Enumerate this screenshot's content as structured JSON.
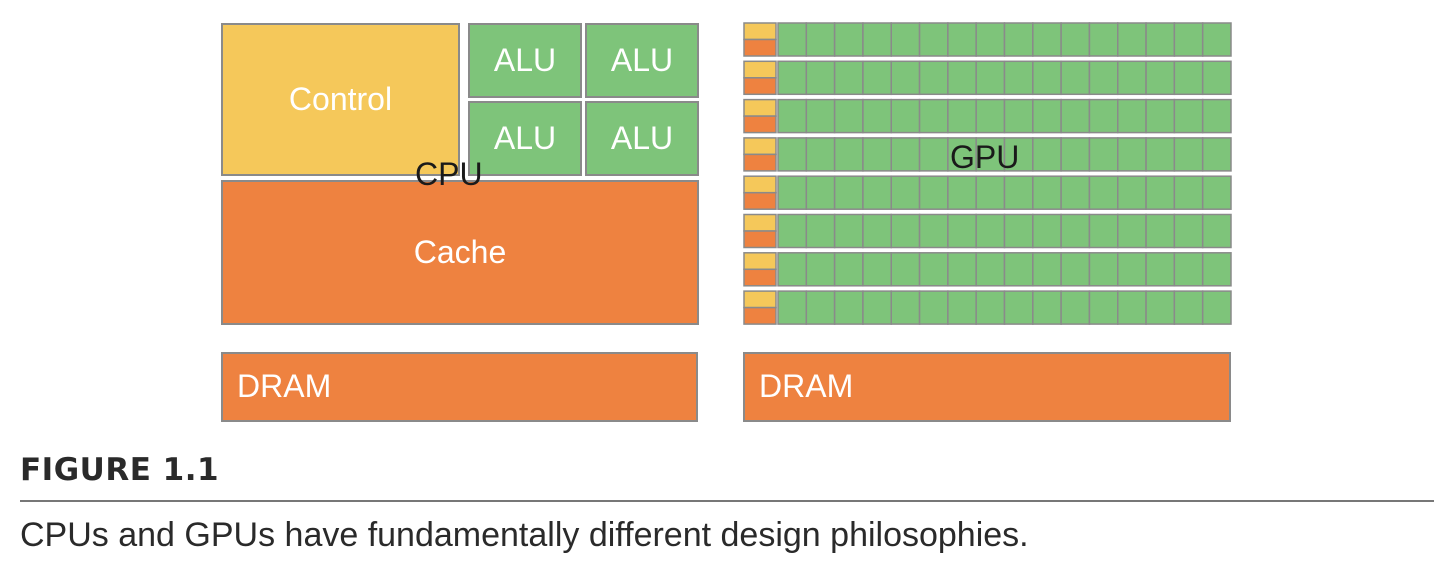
{
  "cpu": {
    "label": "CPU",
    "control_label": "Control",
    "alu_labels": [
      "ALU",
      "ALU",
      "ALU",
      "ALU"
    ],
    "cache_label": "Cache",
    "dram_label": "DRAM"
  },
  "gpu": {
    "label": "GPU",
    "rows": 8,
    "cores_per_row": 16,
    "dram_label": "DRAM"
  },
  "colors": {
    "control": "#f5c85a",
    "alu": "#7ec47a",
    "cache": "#ee8240",
    "border": "#8a8a8a"
  },
  "caption": {
    "figure_label": "FIGURE 1.1",
    "text": "CPUs and GPUs have fundamentally different design philosophies."
  }
}
